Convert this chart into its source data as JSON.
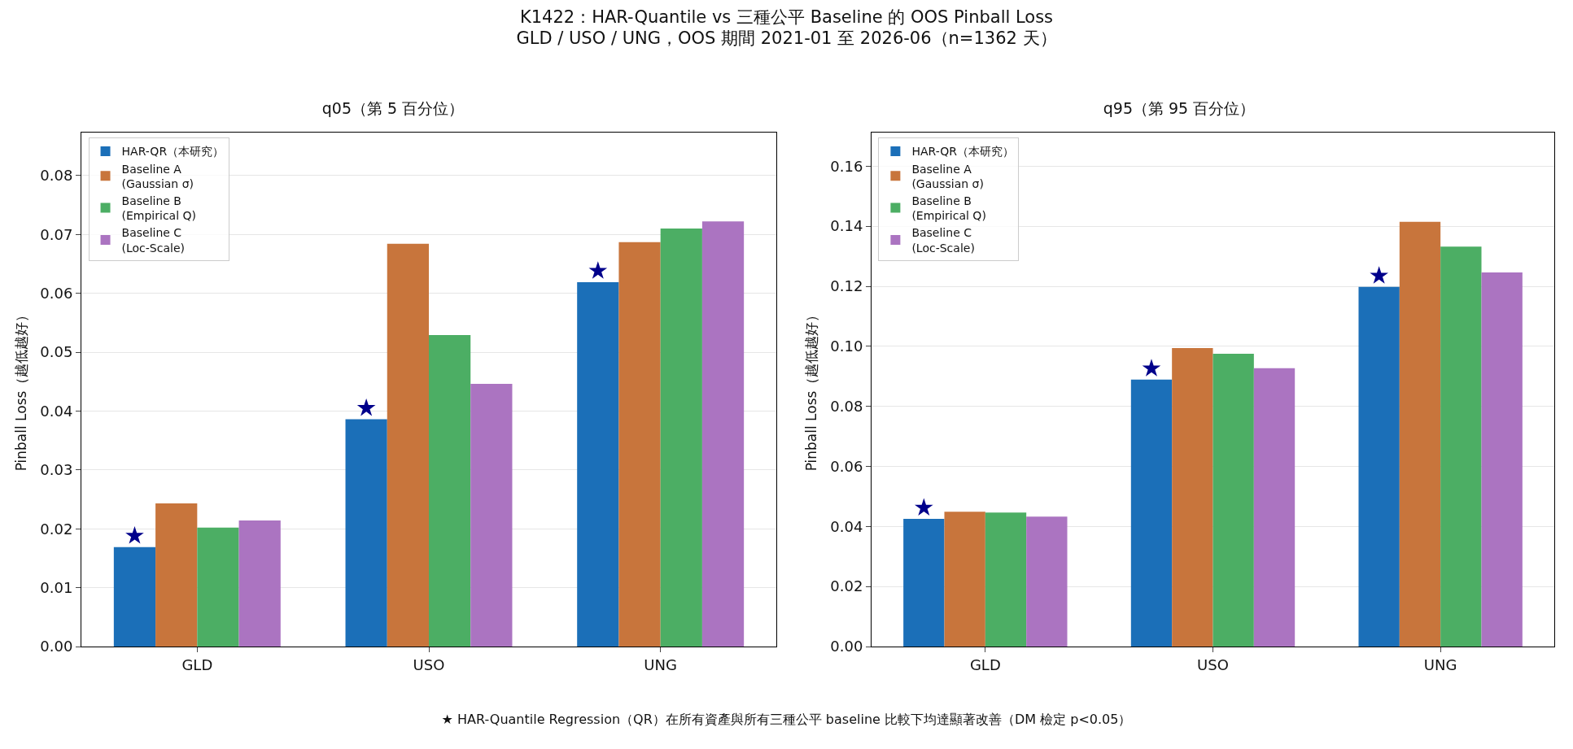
{
  "chart_data": [
    {
      "type": "bar",
      "title": "q05（第 5 百分位）",
      "ylabel": "Pinball Loss（越低越好）",
      "categories": [
        "GLD",
        "USO",
        "UNG"
      ],
      "series": [
        {
          "name": "HAR-QR（本研究）",
          "color": "#1b6fb8",
          "values": [
            0.0169,
            0.0386,
            0.0619
          ]
        },
        {
          "name": "Baseline A\n(Gaussian σ)",
          "color": "#c8753c",
          "values": [
            0.0243,
            0.0684,
            0.0687
          ]
        },
        {
          "name": "Baseline B\n(Empirical Q)",
          "color": "#4cae64",
          "values": [
            0.0202,
            0.0529,
            0.071
          ]
        },
        {
          "name": "Baseline C\n(Loc-Scale)",
          "color": "#ab74c1",
          "values": [
            0.0214,
            0.0446,
            0.0722
          ]
        },
        {
          "type": "scatter",
          "marker": "star",
          "color": "#00008b",
          "x": [
            "GLD",
            "USO",
            "UNG"
          ],
          "values": [
            0.0188,
            0.0405,
            0.0638
          ]
        }
      ],
      "ylim": [
        0,
        0.0873
      ],
      "yticks": [
        "0.00",
        0.01,
        0.02,
        0.03,
        0.04,
        0.05,
        0.06,
        0.07,
        0.08
      ],
      "grid": "y",
      "legend": "top left",
      "annotations": [
        "K1422：HAR-Quantile vs 三種公平 Baseline 的 OOS Pinball Loss\nGLD / USO / UNG，OOS 期間 2021-01 至 2026-06（n=1362 天）"
      ]
    },
    {
      "type": "bar",
      "title": "q95（第 95 百分位）",
      "ylabel": "Pinball Loss（越低越好）",
      "categories": [
        "GLD",
        "USO",
        "UNG"
      ],
      "series": [
        {
          "name": "HAR-QR（本研究）",
          "color": "#1b6fb8",
          "values": [
            0.0425,
            0.0889,
            0.1198
          ]
        },
        {
          "name": "Baseline A\n(Gaussian σ)",
          "color": "#c8753c",
          "values": [
            0.0449,
            0.0994,
            0.1415
          ]
        },
        {
          "name": "Baseline B\n(Empirical Q)",
          "color": "#4cae64",
          "values": [
            0.0446,
            0.0975,
            0.1332
          ]
        },
        {
          "name": "Baseline C\n(Loc-Scale)",
          "color": "#ab74c1",
          "values": [
            0.0433,
            0.0927,
            0.1246
          ]
        },
        {
          "type": "scatter",
          "marker": "star",
          "color": "#00008b",
          "x": [
            "GLD",
            "USO",
            "UNG"
          ],
          "values": [
            0.0462,
            0.0926,
            0.1235
          ]
        }
      ],
      "ylim": [
        0,
        0.1712
      ],
      "yticks": [
        {
          "value": 0,
          "label": "0.00"
        },
        {
          "value": 0.02,
          "label": "0.02"
        },
        {
          "value": 0.04,
          "label": "0.04"
        },
        {
          "value": 0.06,
          "label": "0.06"
        },
        {
          "value": 0.08,
          "label": "0.08"
        },
        {
          "value": 0.1,
          "label": "0.10"
        },
        {
          "value": 0.12,
          "label": "0.12"
        },
        {
          "value": 0.14,
          "label": "0.14"
        },
        {
          "value": 0.16,
          "label": "0.16"
        }
      ],
      "grid": "y",
      "legend": "top left",
      "annotations": [
        "★ HAR-Quantile Regression（QR）在所有資產與所有三種公平 baseline 比較下均達顯著改善（DM 檢定 p<0.05）"
      ]
    }
  ]
}
